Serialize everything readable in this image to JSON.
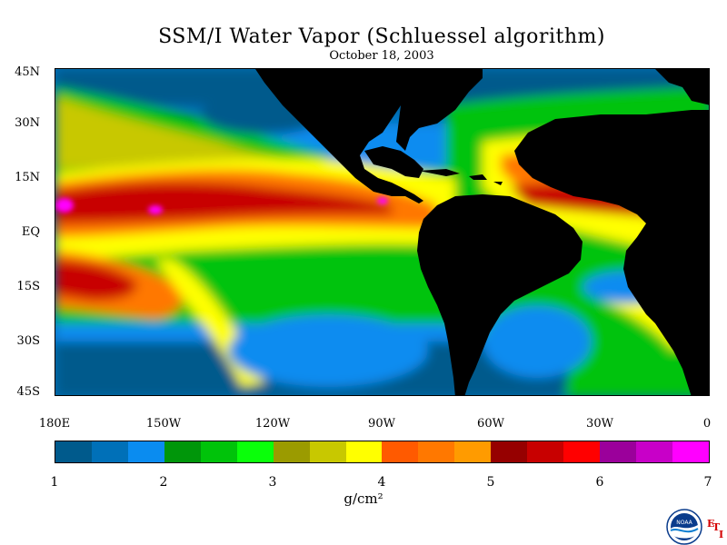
{
  "title": "SSM/I Water Vapor (Schluessel algorithm)",
  "subtitle": "October 18, 2003",
  "lat_labels": [
    "45N",
    "30N",
    "15N",
    "EQ",
    "15S",
    "30S",
    "45S"
  ],
  "lon_labels": [
    "180E",
    "150W",
    "120W",
    "90W",
    "60W",
    "30W",
    "0"
  ],
  "colorbar": {
    "ticks": [
      "1",
      "2",
      "3",
      "4",
      "5",
      "6",
      "7"
    ],
    "units": "g/cm²",
    "colors": [
      "#005a8c",
      "#0070b8",
      "#0a8cf0",
      "#00960a",
      "#00c30a",
      "#0aff0a",
      "#9b9b00",
      "#c8c800",
      "#ffff00",
      "#ff5a00",
      "#ff7800",
      "#ff9b00",
      "#960000",
      "#c80000",
      "#ff0000",
      "#9b009b",
      "#c800c8",
      "#ff00ff"
    ]
  },
  "map": {
    "land_color": "#000000",
    "ocean_base_color": "#0a8cf0"
  },
  "logo": {
    "text": "NOAA",
    "mark": "ETI"
  }
}
